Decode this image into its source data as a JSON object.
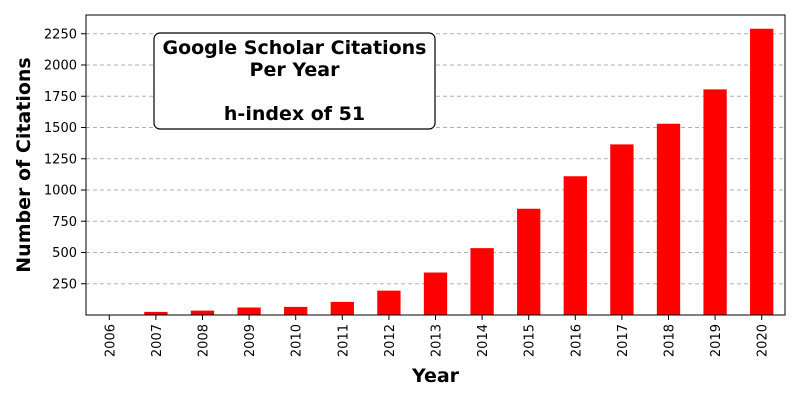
{
  "chart_data": {
    "type": "bar",
    "categories": [
      "2006",
      "2007",
      "2008",
      "2009",
      "2010",
      "2011",
      "2012",
      "2013",
      "2014",
      "2015",
      "2016",
      "2017",
      "2018",
      "2019",
      "2020"
    ],
    "values": [
      3,
      25,
      35,
      60,
      65,
      105,
      195,
      340,
      535,
      850,
      1110,
      1365,
      1530,
      1805,
      2290
    ],
    "xlabel": "Year",
    "ylabel": "Number of Citations",
    "ylim": [
      0,
      2400
    ],
    "yticks": [
      250,
      500,
      750,
      1000,
      1250,
      1500,
      1750,
      2000,
      2250
    ],
    "grid": true,
    "bar_color": "#ff0000",
    "annotation": {
      "lines": [
        "Google Scholar Citations",
        "Per Year",
        "",
        "h-index of 51"
      ],
      "placement": "top-left"
    }
  }
}
